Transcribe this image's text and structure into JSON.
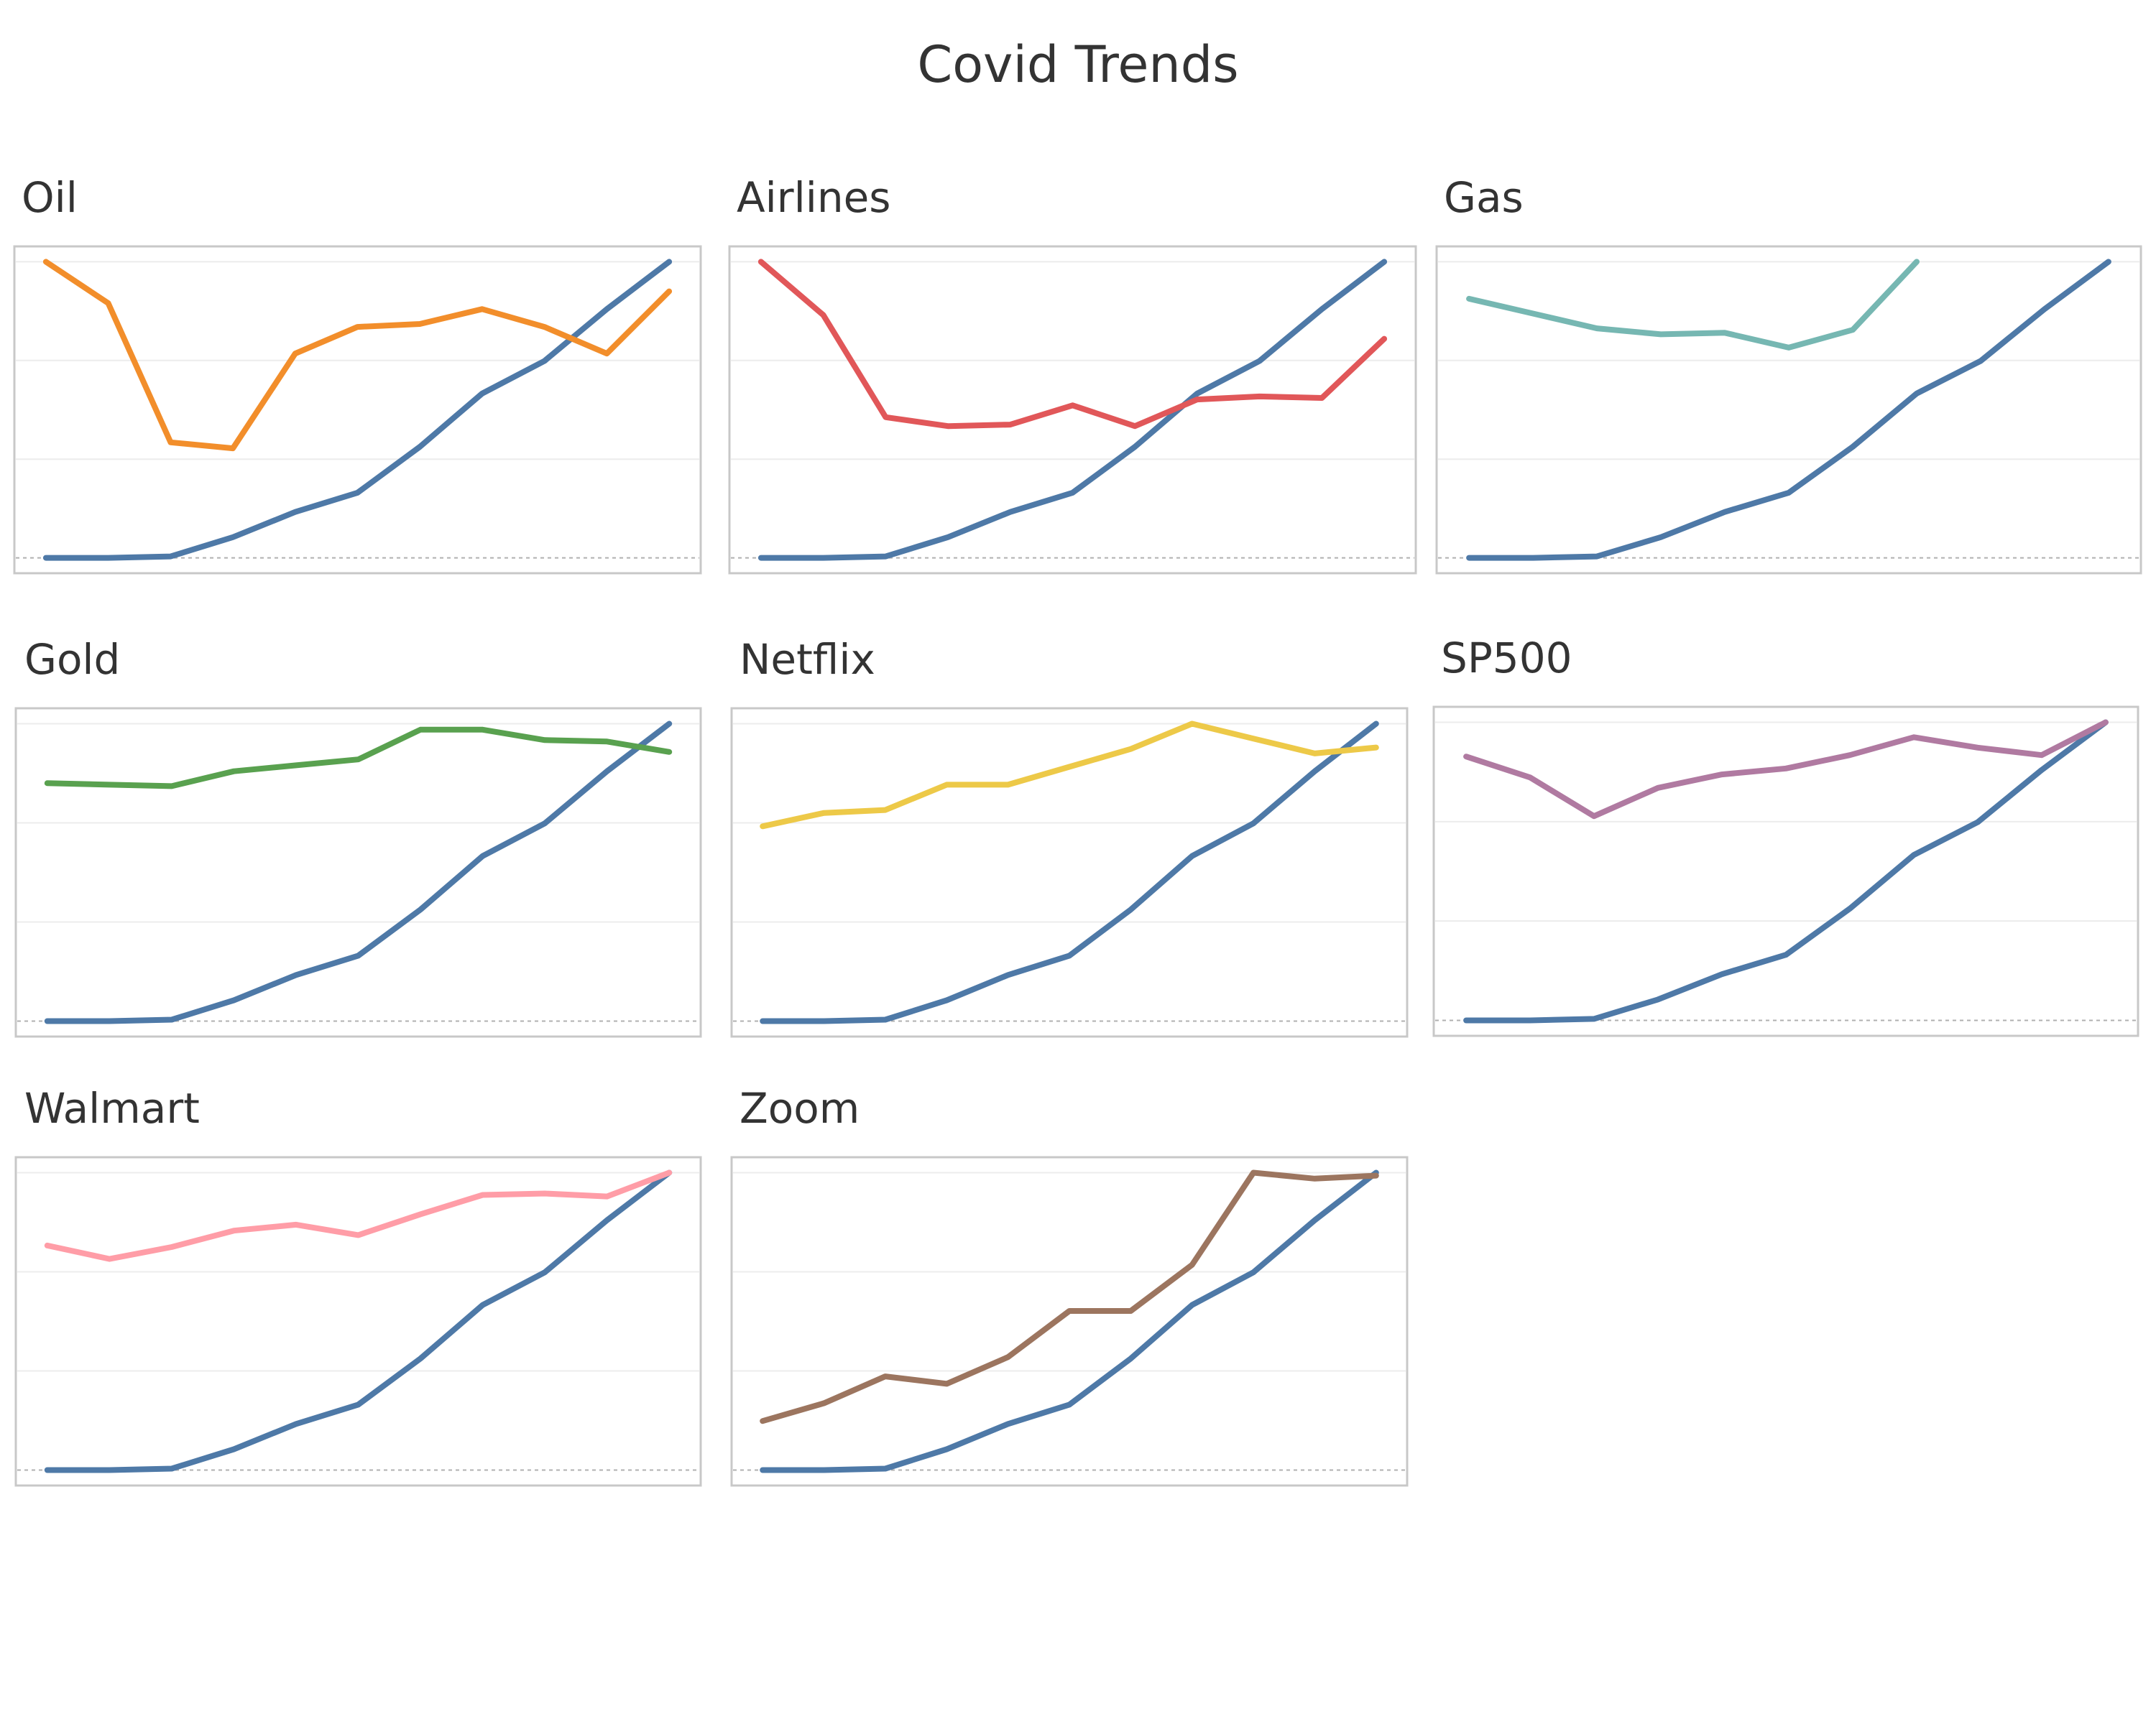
{
  "dashboard": {
    "title": "Covid Trends"
  },
  "chart_data": [
    {
      "type": "line",
      "title": "Oil",
      "x": [
        1,
        2,
        3,
        4,
        5,
        6,
        7,
        8,
        9,
        10,
        11
      ],
      "ylim": [
        0,
        1
      ],
      "grid": true,
      "series": [
        {
          "color": "#4e79a7",
          "values": [
            0.0,
            0.0,
            0.005,
            0.07,
            0.155,
            0.22,
            0.375,
            0.555,
            0.665,
            0.84,
            1.0
          ]
        },
        {
          "color": "#f28e2b",
          "values": [
            1.0,
            0.86,
            0.39,
            0.37,
            0.69,
            0.78,
            0.79,
            0.84,
            0.78,
            0.69,
            0.9
          ]
        }
      ]
    },
    {
      "type": "line",
      "title": "Airlines",
      "x": [
        1,
        2,
        3,
        4,
        5,
        6,
        7,
        8,
        9,
        10,
        11
      ],
      "ylim": [
        0,
        1
      ],
      "grid": true,
      "series": [
        {
          "color": "#4e79a7",
          "values": [
            0.0,
            0.0,
            0.005,
            0.07,
            0.155,
            0.22,
            0.375,
            0.555,
            0.665,
            0.84,
            1.0
          ]
        },
        {
          "color": "#e15759",
          "values": [
            1.0,
            0.82,
            0.475,
            0.445,
            0.45,
            0.515,
            0.445,
            0.535,
            0.545,
            0.54,
            0.74
          ]
        }
      ]
    },
    {
      "type": "line",
      "title": "Gas",
      "x": [
        1,
        2,
        3,
        4,
        5,
        6,
        7,
        8,
        9,
        10,
        11
      ],
      "ylim": [
        0,
        1
      ],
      "grid": true,
      "series": [
        {
          "color": "#4e79a7",
          "values": [
            0.0,
            0.0,
            0.005,
            0.07,
            0.155,
            0.22,
            0.375,
            0.555,
            0.665,
            0.84,
            1.0
          ]
        },
        {
          "color": "#76b7b2",
          "values": [
            0.875,
            0.825,
            0.775,
            0.755,
            0.76,
            0.71,
            0.77,
            1.0,
            null,
            null,
            null
          ]
        }
      ]
    },
    {
      "type": "line",
      "title": "Gold",
      "x": [
        1,
        2,
        3,
        4,
        5,
        6,
        7,
        8,
        9,
        10,
        11
      ],
      "ylim": [
        0,
        1
      ],
      "grid": true,
      "series": [
        {
          "color": "#4e79a7",
          "values": [
            0.0,
            0.0,
            0.005,
            0.07,
            0.155,
            0.22,
            0.375,
            0.555,
            0.665,
            0.84,
            1.0
          ]
        },
        {
          "color": "#59a14f",
          "values": [
            0.8,
            0.795,
            0.79,
            0.84,
            0.86,
            0.88,
            0.98,
            0.98,
            0.945,
            0.94,
            0.905
          ]
        }
      ]
    },
    {
      "type": "line",
      "title": "Netflix",
      "x": [
        1,
        2,
        3,
        4,
        5,
        6,
        7,
        8,
        9,
        10,
        11
      ],
      "ylim": [
        0,
        1
      ],
      "grid": true,
      "series": [
        {
          "color": "#4e79a7",
          "values": [
            0.0,
            0.0,
            0.005,
            0.07,
            0.155,
            0.22,
            0.375,
            0.555,
            0.665,
            0.84,
            1.0
          ]
        },
        {
          "color": "#edc948",
          "values": [
            0.655,
            0.7,
            0.71,
            0.795,
            0.795,
            0.855,
            0.915,
            1.0,
            0.95,
            0.9,
            0.92
          ]
        }
      ]
    },
    {
      "type": "line",
      "title": "SP500",
      "x": [
        1,
        2,
        3,
        4,
        5,
        6,
        7,
        8,
        9,
        10,
        11
      ],
      "ylim": [
        0,
        1
      ],
      "grid": true,
      "series": [
        {
          "color": "#4e79a7",
          "values": [
            0.0,
            0.0,
            0.005,
            0.07,
            0.155,
            0.22,
            0.375,
            0.555,
            0.665,
            0.84,
            1.0
          ]
        },
        {
          "color": "#b07aa1",
          "values": [
            0.885,
            0.815,
            0.685,
            0.78,
            0.825,
            0.845,
            0.89,
            0.95,
            0.915,
            0.89,
            1.0
          ]
        }
      ]
    },
    {
      "type": "line",
      "title": "Walmart",
      "x": [
        1,
        2,
        3,
        4,
        5,
        6,
        7,
        8,
        9,
        10,
        11
      ],
      "ylim": [
        0,
        1
      ],
      "grid": true,
      "series": [
        {
          "color": "#4e79a7",
          "values": [
            0.0,
            0.0,
            0.005,
            0.07,
            0.155,
            0.22,
            0.375,
            0.555,
            0.665,
            0.84,
            1.0
          ]
        },
        {
          "color": "#ff9da7",
          "values": [
            0.755,
            0.71,
            0.75,
            0.805,
            0.825,
            0.79,
            0.86,
            0.925,
            0.93,
            0.92,
            1.0
          ]
        }
      ]
    },
    {
      "type": "line",
      "title": "Zoom",
      "x": [
        1,
        2,
        3,
        4,
        5,
        6,
        7,
        8,
        9,
        10,
        11
      ],
      "ylim": [
        0,
        1
      ],
      "grid": true,
      "series": [
        {
          "color": "#4e79a7",
          "values": [
            0.0,
            0.0,
            0.005,
            0.07,
            0.155,
            0.22,
            0.375,
            0.555,
            0.665,
            0.84,
            1.0
          ]
        },
        {
          "color": "#9c755f",
          "values": [
            0.165,
            0.225,
            0.315,
            0.29,
            0.38,
            0.535,
            0.535,
            0.69,
            1.0,
            0.98,
            0.99
          ]
        }
      ]
    }
  ]
}
